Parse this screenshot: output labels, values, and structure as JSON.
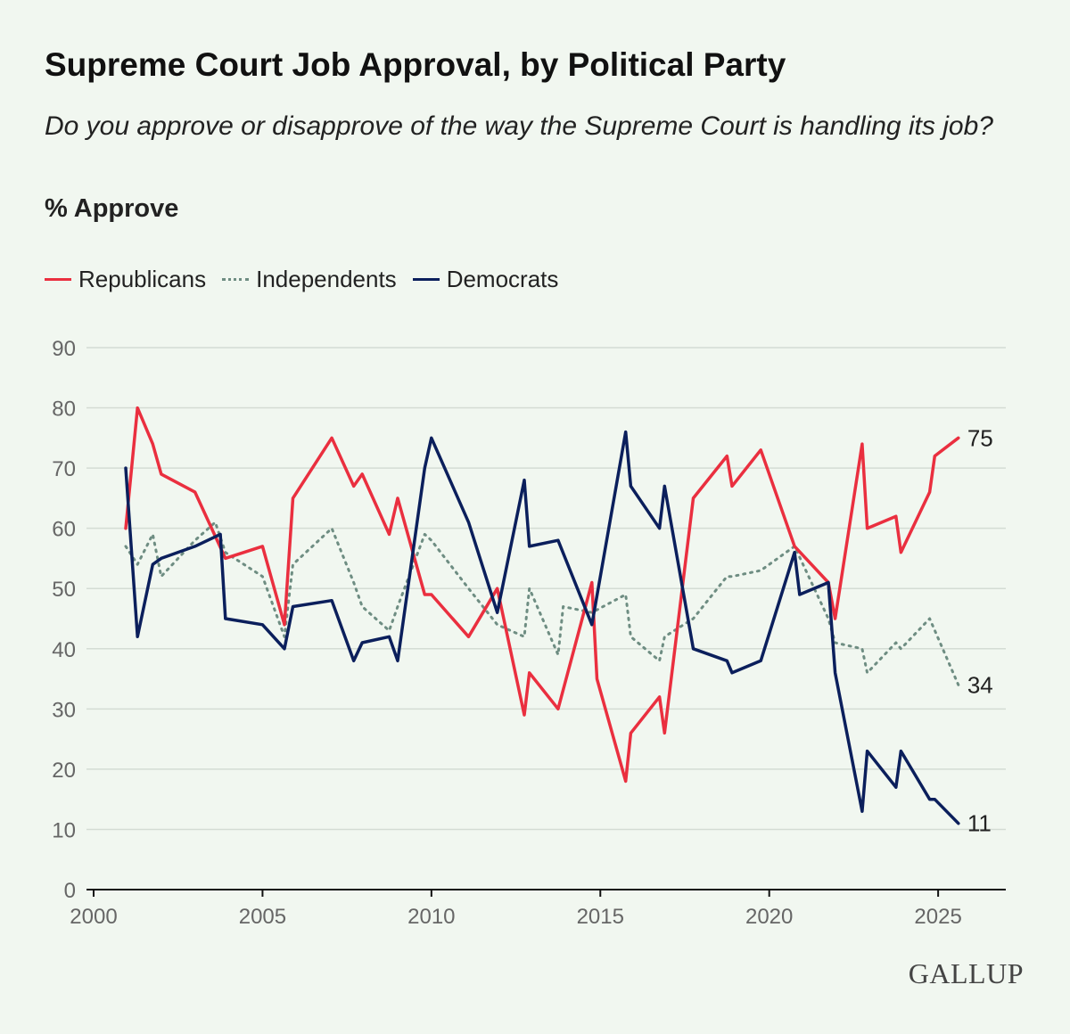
{
  "title": "Supreme Court Job Approval, by Political Party",
  "subtitle": "Do you approve or disapprove of the way the Supreme Court is handling its job?",
  "unit_label": "% Approve",
  "logo_text": "GALLUP",
  "colors": {
    "republicans": "#ea2f3f",
    "independents": "#6e8d82",
    "democrats": "#0b1f5c",
    "grid": "#d4dcd4"
  },
  "chart_data": {
    "type": "line",
    "title": "Supreme Court Job Approval, by Political Party",
    "ylabel": "% Approve",
    "xlim": [
      2000,
      2026
    ],
    "ylim": [
      0,
      90
    ],
    "x_ticks": [
      "2000",
      "2005",
      "2010",
      "2015",
      "2020",
      "2025"
    ],
    "y_ticks": [
      "0",
      "10",
      "20",
      "30",
      "40",
      "50",
      "60",
      "70",
      "80",
      "90"
    ],
    "grid": true,
    "legend_position": "top-left",
    "series": [
      {
        "name": "Republicans",
        "style": "solid",
        "end_label": "75",
        "x": [
          2000.95,
          2001.3,
          2001.75,
          2002.0,
          2003.0,
          2003.9,
          2005.0,
          2005.65,
          2005.9,
          2007.05,
          2007.7,
          2007.95,
          2008.75,
          2009.0,
          2009.8,
          2010.0,
          2011.1,
          2011.95,
          2012.75,
          2012.9,
          2013.75,
          2014.75,
          2014.9,
          2015.75,
          2015.9,
          2016.75,
          2016.9,
          2017.75,
          2018.75,
          2018.9,
          2019.75,
          2020.75,
          2021.75,
          2021.95,
          2022.75,
          2022.9,
          2023.75,
          2023.9,
          2024.75,
          2024.9,
          2025.6
        ],
        "y": [
          60,
          80,
          74,
          69,
          66,
          55,
          57,
          44,
          65,
          75,
          67,
          69,
          59,
          65,
          49,
          49,
          42,
          50,
          29,
          36,
          30,
          51,
          35,
          18,
          26,
          32,
          26,
          65,
          72,
          67,
          73,
          57,
          51,
          45,
          74,
          60,
          62,
          56,
          66,
          72,
          75
        ]
      },
      {
        "name": "Independents",
        "style": "dotted",
        "end_label": "34",
        "x": [
          2000.95,
          2001.3,
          2001.75,
          2002.0,
          2003.0,
          2003.6,
          2003.9,
          2005.0,
          2005.65,
          2005.9,
          2007.05,
          2007.7,
          2007.95,
          2008.75,
          2009.0,
          2009.8,
          2010.0,
          2011.1,
          2011.95,
          2012.75,
          2012.9,
          2013.75,
          2013.9,
          2014.75,
          2015.75,
          2015.9,
          2016.75,
          2016.9,
          2017.75,
          2018.75,
          2018.9,
          2019.75,
          2020.75,
          2021.75,
          2021.95,
          2022.75,
          2022.9,
          2023.75,
          2023.9,
          2024.75,
          2025.6
        ],
        "y": [
          57,
          54,
          59,
          52,
          58,
          61,
          56,
          52,
          42,
          54,
          60,
          51,
          47,
          43,
          47,
          59,
          58,
          50,
          44,
          42,
          50,
          39,
          47,
          46,
          49,
          42,
          38,
          42,
          45,
          52,
          52,
          53,
          57,
          45,
          41,
          40,
          36,
          41,
          40,
          45,
          34
        ]
      },
      {
        "name": "Democrats",
        "style": "solid",
        "end_label": "11",
        "x": [
          2000.95,
          2001.3,
          2001.75,
          2002.0,
          2003.0,
          2003.75,
          2003.9,
          2005.0,
          2005.65,
          2005.9,
          2007.05,
          2007.7,
          2007.95,
          2008.75,
          2009.0,
          2009.8,
          2010.0,
          2011.1,
          2011.95,
          2012.75,
          2012.9,
          2013.75,
          2014.75,
          2015.75,
          2015.9,
          2016.75,
          2016.9,
          2017.75,
          2018.75,
          2018.9,
          2019.75,
          2020.75,
          2020.9,
          2021.75,
          2021.95,
          2022.75,
          2022.9,
          2023.75,
          2023.9,
          2024.75,
          2024.9,
          2025.6
        ],
        "y": [
          70,
          42,
          54,
          55,
          57,
          59,
          45,
          44,
          40,
          47,
          48,
          38,
          41,
          42,
          38,
          70,
          75,
          61,
          46,
          68,
          57,
          58,
          44,
          76,
          67,
          60,
          67,
          40,
          38,
          36,
          38,
          56,
          49,
          51,
          36,
          13,
          23,
          17,
          23,
          15,
          15,
          11
        ]
      }
    ]
  }
}
